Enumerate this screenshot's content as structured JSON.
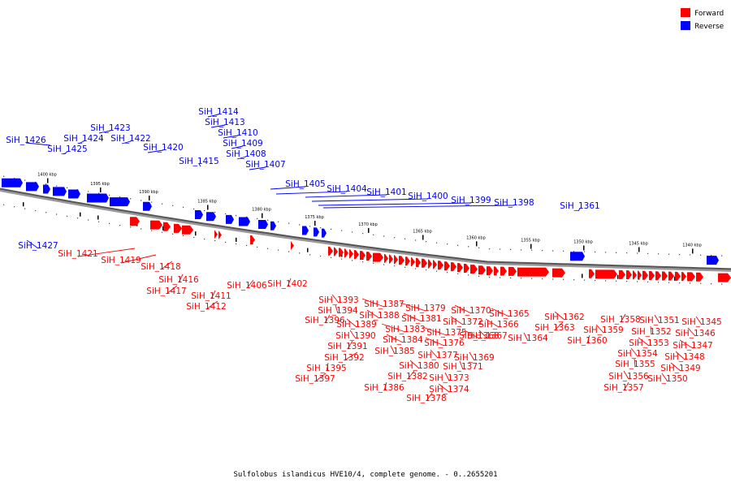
{
  "legend": {
    "forward": {
      "label": "Forward",
      "color": "#ff0000"
    },
    "reverse": {
      "label": "Reverse",
      "color": "#0000ff"
    }
  },
  "caption": "Sulfolobus islandicus HVE10/4, complete genome. - 0..2655201",
  "scale_labels": [
    "1400 kbp",
    "1395 kbp",
    "1390 kbp",
    "1385 kbp",
    "1380 kbp",
    "1375 kbp",
    "1370 kbp",
    "1365 kbp",
    "1360 kbp",
    "1355 kbp",
    "1350 kbp",
    "1345 kbp",
    "1340 kbp"
  ],
  "reverse_labels": [
    "SiH_1427",
    "SiH_1426",
    "SiH_1425",
    "SiH_1424",
    "SiH_1423",
    "SiH_1422",
    "SiH_1420",
    "SiH_1415",
    "SiH_1414",
    "SiH_1413",
    "SiH_1410",
    "SiH_1409",
    "SiH_1408",
    "SiH_1407",
    "SiH_1405",
    "SiH_1404",
    "SiH_1401",
    "SiH_1400",
    "SiH_1399",
    "SiH_1398",
    "SiH_1361"
  ],
  "forward_labels": [
    "SiH_1421",
    "SiH_1419",
    "SiH_1418",
    "SiH_1416",
    "SiH_1417",
    "SiH_1411",
    "SiH_1412",
    "SiH_1406",
    "SiH_1402",
    "SiH_1393",
    "SiH_1394",
    "SiH_1396",
    "SiH_1389",
    "SiH_1390",
    "SiH_1391",
    "SiH_1392",
    "SiH_1395",
    "SiH_1397",
    "SiH_1387",
    "SiH_1388",
    "SiH_1383",
    "SiH_1384",
    "SiH_1385",
    "SiH_1386",
    "SiH_1379",
    "SiH_1381",
    "SiH_1380",
    "SiH_1382",
    "SiH_1375",
    "SiH_1376",
    "SiH_1377",
    "SiH_1378",
    "SiH_1370",
    "SiH_1372",
    "SiH_1368",
    "SiH_1369",
    "SiH_1371",
    "SiH_1373",
    "SiH_1374",
    "SiH_1365",
    "SiH_1366",
    "SiH_1367",
    "SiH_1364",
    "SiH_1362",
    "SiH_1363",
    "SiH_1359",
    "SiH_1360",
    "SiH_1358",
    "SiH_1351",
    "SiH_1352",
    "SiH_1353",
    "SiH_1354",
    "SiH_1355",
    "SiH_1356",
    "SiH_1357",
    "SiH_1345",
    "SiH_1346",
    "SiH_1347",
    "SiH_1348",
    "SiH_1349",
    "SiH_1350"
  ]
}
